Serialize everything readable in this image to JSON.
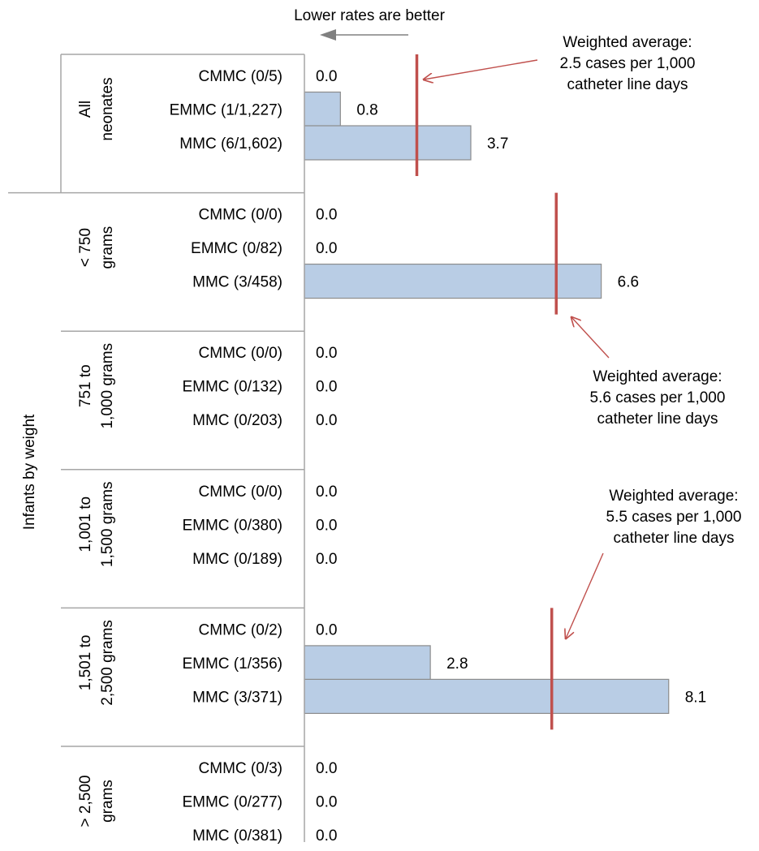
{
  "chart_data": {
    "type": "bar",
    "orientation": "horizontal",
    "direction_hint": "Lower rates are better",
    "group_axis_label": "Infants by weight",
    "colors": {
      "bar_fill": "#b9cde5",
      "bar_stroke": "#8c8c8c",
      "average_line": "#c0504d",
      "hint_arrow": "#808080",
      "axis": "#a6a6a6"
    },
    "groups": [
      {
        "label_lines": [
          "All",
          "neonates"
        ],
        "bars": [
          {
            "category": "CMMC (0/5)",
            "value": 0.0,
            "label": "0.0"
          },
          {
            "category": "EMMC (1/1,227)",
            "value": 0.8,
            "label": "0.8"
          },
          {
            "category": "MMC (6/1,602)",
            "value": 3.7,
            "label": "3.7"
          }
        ],
        "weighted_average": 2.5
      },
      {
        "label_lines": [
          "< 750",
          "grams"
        ],
        "bars": [
          {
            "category": "CMMC (0/0)",
            "value": 0.0,
            "label": "0.0"
          },
          {
            "category": "EMMC (0/82)",
            "value": 0.0,
            "label": "0.0"
          },
          {
            "category": "MMC (3/458)",
            "value": 6.6,
            "label": "6.6"
          }
        ],
        "weighted_average": 5.6
      },
      {
        "label_lines": [
          "751 to",
          "1,000 grams"
        ],
        "bars": [
          {
            "category": "CMMC (0/0)",
            "value": 0.0,
            "label": "0.0"
          },
          {
            "category": "EMMC (0/132)",
            "value": 0.0,
            "label": "0.0"
          },
          {
            "category": "MMC (0/203)",
            "value": 0.0,
            "label": "0.0"
          }
        ],
        "weighted_average": null
      },
      {
        "label_lines": [
          "1,001 to",
          "1,500 grams"
        ],
        "bars": [
          {
            "category": "CMMC (0/0)",
            "value": 0.0,
            "label": "0.0"
          },
          {
            "category": "EMMC (0/380)",
            "value": 0.0,
            "label": "0.0"
          },
          {
            "category": "MMC (0/189)",
            "value": 0.0,
            "label": "0.0"
          }
        ],
        "weighted_average": null
      },
      {
        "label_lines": [
          "1,501 to",
          "2,500 grams"
        ],
        "bars": [
          {
            "category": "CMMC (0/2)",
            "value": 0.0,
            "label": "0.0"
          },
          {
            "category": "EMMC (1/356)",
            "value": 2.8,
            "label": "2.8"
          },
          {
            "category": "MMC (3/371)",
            "value": 8.1,
            "label": "8.1"
          }
        ],
        "weighted_average": 5.5
      },
      {
        "label_lines": [
          "> 2,500",
          "grams"
        ],
        "bars": [
          {
            "category": "CMMC (0/3)",
            "value": 0.0,
            "label": "0.0"
          },
          {
            "category": "EMMC (0/277)",
            "value": 0.0,
            "label": "0.0"
          },
          {
            "category": "MMC (0/381)",
            "value": 0.0,
            "label": "0.0"
          }
        ],
        "weighted_average": null
      }
    ],
    "annotations": [
      {
        "group": 0,
        "lines": [
          "Weighted average:",
          "2.5 cases per 1,000",
          "catheter line days"
        ]
      },
      {
        "group": 1,
        "lines": [
          "Weighted average:",
          "5.6 cases per 1,000",
          "catheter line days"
        ]
      },
      {
        "group": 4,
        "lines": [
          "Weighted average:",
          "5.5 cases per 1,000",
          "catheter line days"
        ]
      }
    ]
  }
}
